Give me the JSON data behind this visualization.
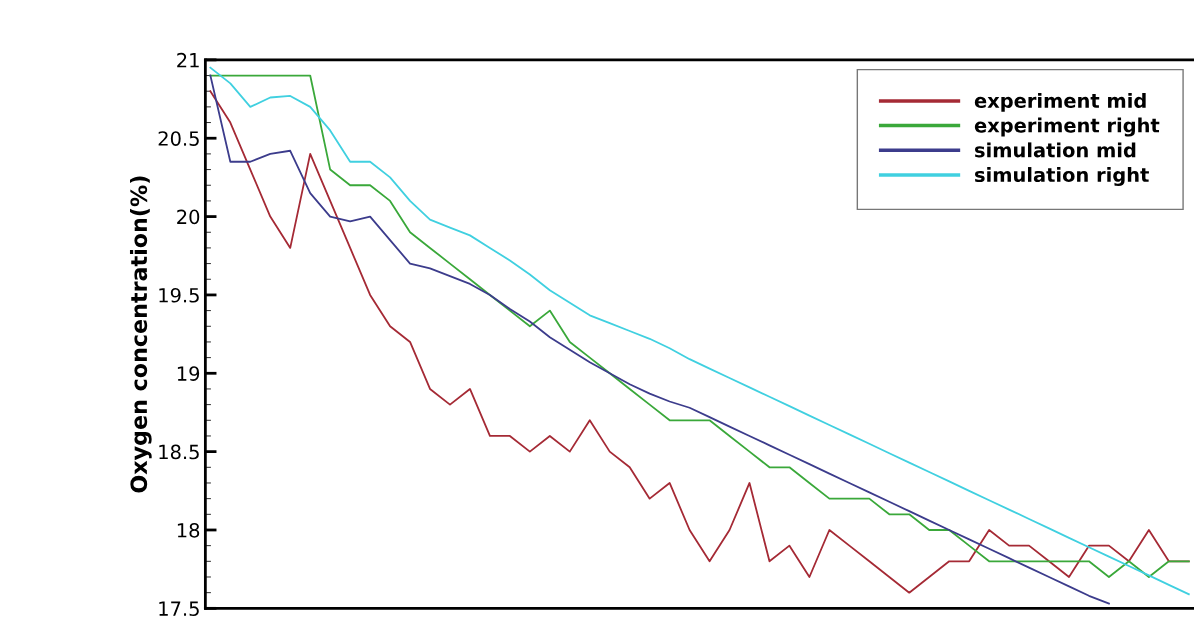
{
  "chart_data": {
    "type": "line",
    "ylabel": "Oxygen concentration(%)",
    "categories": [
      null,
      null,
      null,
      null,
      null,
      null,
      null,
      null,
      null,
      null,
      null,
      null,
      null,
      null,
      null,
      null,
      null,
      null,
      null,
      null,
      null,
      null,
      null,
      null,
      null,
      null,
      null,
      null,
      null,
      null,
      null,
      null,
      null,
      null,
      null,
      null,
      null,
      null,
      null,
      null,
      null,
      null,
      null,
      null,
      null,
      null,
      null,
      null,
      null,
      null
    ],
    "series": [
      {
        "name": "experiment mid",
        "color": "#a52a35",
        "values": [
          20.8,
          20.6,
          20.3,
          20.0,
          19.8,
          20.4,
          20.1,
          19.8,
          19.5,
          19.3,
          19.2,
          18.9,
          18.8,
          18.9,
          18.6,
          18.6,
          18.5,
          18.6,
          18.5,
          18.7,
          18.5,
          18.4,
          18.2,
          18.3,
          18.0,
          17.8,
          18.0,
          18.3,
          17.8,
          17.9,
          17.7,
          18.0,
          17.9,
          17.8,
          17.7,
          17.6,
          17.7,
          17.8,
          17.8,
          18.0,
          17.9,
          17.9,
          17.8,
          17.7,
          17.9,
          17.9,
          17.8,
          18.0,
          17.8,
          17.8
        ]
      },
      {
        "name": "experiment right",
        "color": "#3aa83a",
        "values": [
          20.9,
          20.9,
          20.9,
          20.9,
          20.9,
          20.9,
          20.3,
          20.2,
          20.2,
          20.1,
          19.9,
          19.8,
          19.7,
          19.6,
          19.5,
          19.4,
          19.3,
          19.4,
          19.2,
          19.1,
          19.0,
          18.9,
          18.8,
          18.7,
          18.7,
          18.7,
          18.6,
          18.5,
          18.4,
          18.4,
          18.3,
          18.2,
          18.2,
          18.2,
          18.1,
          18.1,
          18.0,
          18.0,
          17.9,
          17.8,
          17.8,
          17.8,
          17.8,
          17.8,
          17.8,
          17.7,
          17.8,
          17.7,
          17.8,
          17.8
        ]
      },
      {
        "name": "simulation mid",
        "color": "#3c3c8c",
        "values": [
          20.9,
          20.35,
          20.35,
          20.4,
          20.42,
          20.15,
          20.0,
          19.97,
          20.0,
          19.85,
          19.7,
          19.67,
          19.62,
          19.57,
          19.5,
          19.41,
          19.33,
          19.23,
          19.15,
          19.07,
          19.0,
          18.93,
          18.87,
          18.82,
          18.78,
          18.72,
          18.66,
          18.6,
          18.54,
          18.48,
          18.42,
          18.36,
          18.3,
          18.24,
          18.18,
          18.12,
          18.06,
          18.0,
          17.94,
          17.88,
          17.82,
          17.76,
          17.7,
          17.64,
          17.58,
          17.53,
          null,
          null,
          null,
          null
        ]
      },
      {
        "name": "simulation right",
        "color": "#40d0e0",
        "values": [
          20.95,
          20.85,
          20.7,
          20.76,
          20.77,
          20.7,
          20.55,
          20.35,
          20.35,
          20.25,
          20.1,
          19.98,
          19.93,
          19.88,
          19.8,
          19.72,
          19.63,
          19.53,
          19.45,
          19.37,
          19.32,
          19.27,
          19.22,
          19.16,
          19.09,
          19.03,
          18.97,
          18.91,
          18.85,
          18.79,
          18.73,
          18.67,
          18.61,
          18.55,
          18.49,
          18.43,
          18.37,
          18.31,
          18.25,
          18.19,
          18.13,
          18.07,
          18.01,
          17.95,
          17.89,
          17.83,
          17.77,
          17.71,
          17.65,
          17.59
        ]
      }
    ],
    "ylim": [
      17.5,
      21
    ],
    "yticks": [
      17.5,
      18,
      18.5,
      19,
      19.5,
      20,
      20.5,
      21
    ],
    "tick_labels": "y",
    "legend": "top right",
    "grid": false,
    "line_style": "solid",
    "marker": "none"
  }
}
